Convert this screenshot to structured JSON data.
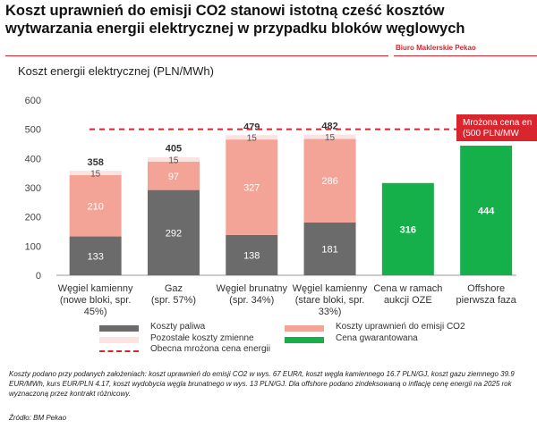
{
  "header": {
    "title": "Koszt uprawnień do emisji CO2 stanowi istotną cześć kosztów wytwarzania energii elektrycznej w przypadku bloków węglowych",
    "brand": "Biuro Maklerskie Pekao"
  },
  "chart_data": {
    "type": "bar",
    "title": "Koszt energii elektrycznej (PLN/MWh)",
    "ylim": [
      0,
      600
    ],
    "yticks": [
      0,
      100,
      200,
      300,
      400,
      500,
      600
    ],
    "categories": [
      [
        "Węgiel kamienny",
        "(nowe bloki, spr.",
        "45%)"
      ],
      [
        "Gaz",
        "(spr. 57%)"
      ],
      [
        "Węgiel brunatny",
        "(spr. 34%)"
      ],
      [
        "Węgiel kamienny",
        "(stare bloki, spr.",
        "33%)"
      ],
      [
        "Cena w ramach",
        "aukcji OZE"
      ],
      [
        "Offshore",
        "pierwsza faza"
      ]
    ],
    "series": [
      {
        "name": "Koszty paliwa",
        "color": "#6b6b6b",
        "label_color": "#ffffff",
        "values": [
          133,
          292,
          138,
          181,
          null,
          null
        ]
      },
      {
        "name": "Koszty uprawnień do emisji CO2",
        "color": "#f4a497",
        "label_color": "#ffffff",
        "values": [
          210,
          97,
          327,
          286,
          null,
          null
        ]
      },
      {
        "name": "Pozostałe koszty zmienne",
        "color": "#fbe3e1",
        "label_color": "#555555",
        "values": [
          15,
          15,
          15,
          15,
          null,
          null
        ]
      },
      {
        "name": "Cena gwarantowana",
        "color": "#15b04a",
        "label_color": "#ffffff",
        "values": [
          null,
          null,
          null,
          null,
          316,
          444
        ]
      }
    ],
    "totals": [
      358,
      405,
      479,
      482,
      null,
      null
    ],
    "reference_line": {
      "name": "Obecna mrożona cena energii",
      "value": 500,
      "color": "#d9262e"
    },
    "annotation": {
      "lines": [
        "Mrożona cena en",
        "(500 PLN/MW"
      ],
      "color": "#d9262e"
    },
    "legend": {
      "position": "bottom",
      "items": [
        {
          "label": "Koszty paliwa",
          "color": "#6b6b6b",
          "kind": "box"
        },
        {
          "label": "Koszty uprawnień do emisji CO2",
          "color": "#f4a497",
          "kind": "box"
        },
        {
          "label": "Pozostałe koszty zmienne",
          "color": "#fbe3e1",
          "kind": "box"
        },
        {
          "label": "Cena gwarantowana",
          "color": "#15b04a",
          "kind": "box"
        },
        {
          "label": "Obecna mrożona cena energii",
          "color": "#d9262e",
          "kind": "dash"
        }
      ]
    }
  },
  "footnote": "Koszty podano przy podanych założeniach: koszt uprawnień do emisji CO2 w wys. 67 EUR/t, koszt węgla kamiennego 16.7 PLN/GJ, koszt gazu ziemnego 39.9 EUR/MWh, kurs EUR/PLN 4.17, koszt wydobycia węgla brunatnego w wys. 13 PLN/GJ. Dla offshore podano zindeksowaną o inflację cenę energii na 2025 rok wyznaczoną przez kontrakt różnicowy.",
  "source": "Źródło: BM Pekao"
}
